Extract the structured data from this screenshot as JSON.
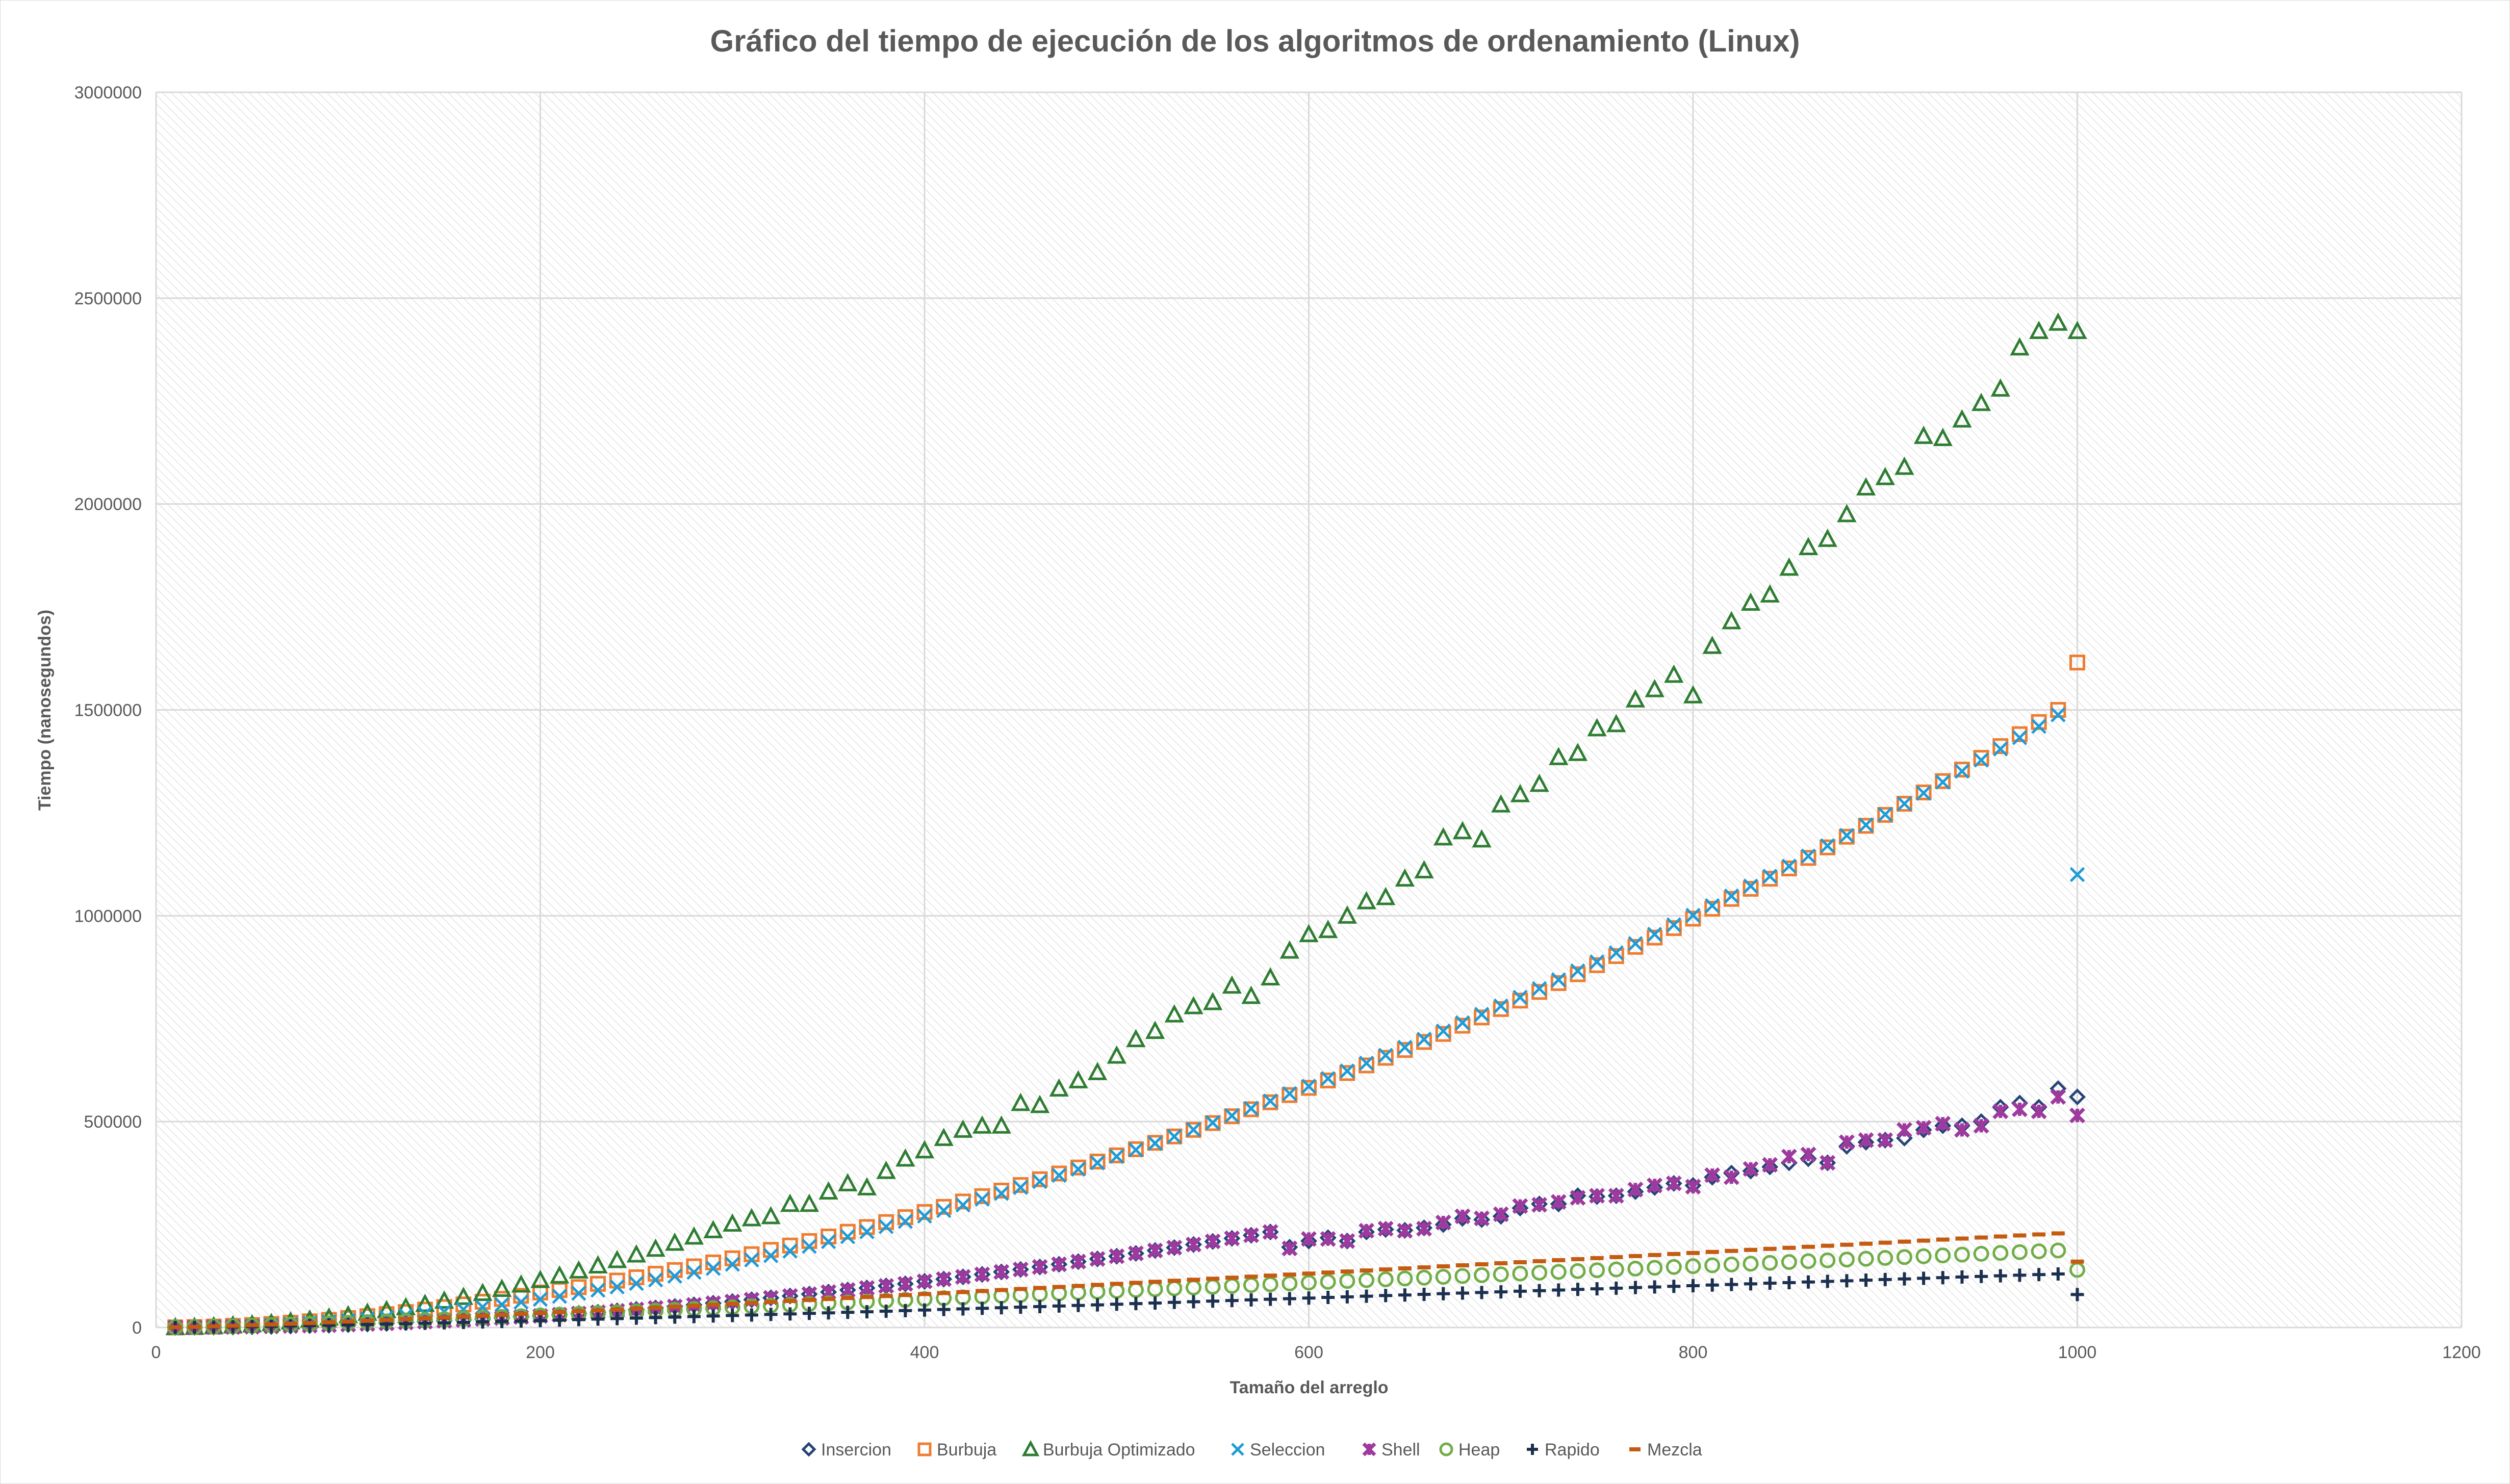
{
  "chart_data": {
    "type": "scatter",
    "title": "Gráfico del tiempo de ejecución de los algoritmos de ordenamiento (Linux)",
    "xlabel": "Tamaño del arreglo",
    "ylabel": "Tiempo (nanosegundos)",
    "xlim": [
      0,
      1200
    ],
    "ylim": [
      0,
      3000000
    ],
    "x_ticks": [
      "0",
      "200",
      "400",
      "600",
      "800",
      "1000",
      "1200"
    ],
    "y_ticks": [
      "0",
      "500000",
      "1000000",
      "1500000",
      "2000000",
      "2500000",
      "3000000"
    ],
    "grid": true,
    "legend_position": "bottom",
    "x": [
      10,
      20,
      30,
      40,
      50,
      60,
      70,
      80,
      90,
      100,
      110,
      120,
      130,
      140,
      150,
      160,
      170,
      180,
      190,
      200,
      210,
      220,
      230,
      240,
      250,
      260,
      270,
      280,
      290,
      300,
      310,
      320,
      330,
      340,
      350,
      360,
      370,
      380,
      390,
      400,
      410,
      420,
      430,
      440,
      450,
      460,
      470,
      480,
      490,
      500,
      510,
      520,
      530,
      540,
      550,
      560,
      570,
      580,
      590,
      600,
      610,
      620,
      630,
      640,
      650,
      660,
      670,
      680,
      690,
      700,
      710,
      720,
      730,
      740,
      750,
      760,
      770,
      780,
      790,
      800,
      810,
      820,
      830,
      840,
      850,
      860,
      870,
      880,
      890,
      900,
      910,
      920,
      930,
      940,
      950,
      960,
      970,
      980,
      990,
      1000
    ],
    "series": [
      {
        "name": "Insercion",
        "color": "#264478",
        "marker": "diamond",
        "values": [
          100,
          300,
          800,
          1200,
          1800,
          2500,
          3500,
          4500,
          5500,
          7000,
          8500,
          10000,
          12000,
          14000,
          16000,
          18000,
          20500,
          23000,
          25500,
          28000,
          31000,
          34000,
          37000,
          40500,
          44000,
          47500,
          51000,
          55000,
          59000,
          63000,
          67500,
          72000,
          76500,
          81000,
          86000,
          91000,
          96000,
          101000,
          106000,
          112000,
          117500,
          123000,
          129000,
          135000,
          141000,
          147000,
          153500,
          160000,
          166500,
          173000,
          180000,
          187000,
          194000,
          201500,
          209000,
          216500,
          224000,
          232000,
          195000,
          210000,
          218000,
          210000,
          232000,
          238000,
          236000,
          242000,
          250000,
          265000,
          262000,
          270000,
          290000,
          300000,
          300000,
          320000,
          318000,
          320000,
          330000,
          340000,
          350000,
          345000,
          365000,
          375000,
          380000,
          390000,
          400000,
          410000,
          400000,
          440000,
          450000,
          455000,
          460000,
          480000,
          490000,
          490000,
          500000,
          535000,
          545000,
          535000,
          580000,
          560000
        ]
      },
      {
        "name": "Burbuja",
        "color": "#ED7D31",
        "marker": "square",
        "values": [
          300,
          1000,
          2300,
          4000,
          6000,
          8500,
          11500,
          15000,
          18500,
          23000,
          27500,
          32500,
          37500,
          43500,
          49500,
          56000,
          62500,
          69500,
          77000,
          85000,
          91000,
          98000,
          106000,
          114000,
          122000,
          130500,
          139500,
          148500,
          158000,
          168000,
          178000,
          188500,
          199000,
          210000,
          221000,
          232500,
          244000,
          256000,
          268000,
          280500,
          293000,
          306000,
          319000,
          332500,
          346000,
          360000,
          374000,
          388500,
          403000,
          418000,
          433000,
          448500,
          464000,
          480000,
          496500,
          513000,
          530000,
          547000,
          564500,
          582000,
          600000,
          618000,
          636500,
          655000,
          674000,
          693500,
          713000,
          733000,
          753000,
          773500,
          794000,
          815000,
          836500,
          858000,
          880000,
          902000,
          924500,
          947000,
          970000,
          993000,
          1017000,
          1041000,
          1065500,
          1090000,
          1115000,
          1140500,
          1166000,
          1192000,
          1218500,
          1245000,
          1272000,
          1299500,
          1327000,
          1355000,
          1383500,
          1412000,
          1441000,
          1470500,
          1500000,
          1615000
        ]
      },
      {
        "name": "Burbuja Optimizado",
        "color": "#2E7D32",
        "marker": "triangle",
        "values": [
          400,
          1200,
          2800,
          5000,
          7500,
          10500,
          14500,
          19000,
          24000,
          29500,
          35500,
          42000,
          49000,
          57000,
          65000,
          74000,
          83500,
          93500,
          104000,
          115000,
          126000,
          138000,
          150500,
          163500,
          177000,
          191000,
          205500,
          220500,
          236000,
          252000,
          265000,
          270000,
          300000,
          300000,
          330000,
          350000,
          340000,
          380000,
          410000,
          430000,
          460000,
          480000,
          490000,
          490000,
          545000,
          540000,
          580000,
          600000,
          620000,
          660000,
          700000,
          720000,
          760000,
          780000,
          790000,
          830000,
          805000,
          850000,
          915000,
          955000,
          965000,
          1000000,
          1035000,
          1045000,
          1090000,
          1110000,
          1190000,
          1205000,
          1185000,
          1270000,
          1295000,
          1320000,
          1385000,
          1395000,
          1455000,
          1465000,
          1525000,
          1550000,
          1585000,
          1535000,
          1655000,
          1715000,
          1760000,
          1780000,
          1845000,
          1895000,
          1915000,
          1975000,
          2040000,
          2065000,
          2090000,
          2165000,
          2160000,
          2205000,
          2245000,
          2280000,
          2380000,
          2420000,
          2440000,
          2420000
        ]
      },
      {
        "name": "Seleccion",
        "color": "#1F9BD6",
        "marker": "x",
        "values": [
          200,
          700,
          1500,
          2700,
          4200,
          6000,
          8200,
          10800,
          13700,
          17000,
          20500,
          24500,
          28800,
          33500,
          38500,
          43800,
          49500,
          55500,
          61800,
          68500,
          75500,
          83000,
          90500,
          98500,
          107000,
          115500,
          124500,
          134000,
          143500,
          153500,
          164000,
          174500,
          185500,
          197000,
          208500,
          220500,
          232500,
          245000,
          257500,
          270500,
          284000,
          297500,
          311500,
          325500,
          340000,
          354500,
          369500,
          384500,
          400000,
          415500,
          431500,
          447500,
          464000,
          480500,
          497500,
          514500,
          532000,
          550000,
          568000,
          586000,
          604500,
          623000,
          642000,
          661000,
          680500,
          700000,
          720000,
          740000,
          760500,
          781000,
          802000,
          823000,
          844500,
          866000,
          888000,
          910000,
          932500,
          955000,
          978000,
          1001000,
          1024500,
          1048000,
          1072000,
          1096000,
          1120500,
          1145000,
          1170000,
          1195000,
          1220500,
          1246000,
          1272000,
          1298000,
          1324500,
          1351000,
          1378000,
          1405000,
          1432500,
          1460000,
          1488000,
          1100000
        ]
      },
      {
        "name": "Shell",
        "color": "#9E3A9E",
        "marker": "star",
        "values": [
          100,
          300,
          800,
          1200,
          1800,
          2500,
          3500,
          4500,
          5500,
          7000,
          8500,
          10000,
          12000,
          14000,
          16000,
          18000,
          20500,
          23000,
          25500,
          28000,
          31000,
          34000,
          37000,
          40500,
          44000,
          47500,
          51000,
          55000,
          59000,
          63000,
          67500,
          72000,
          76500,
          81000,
          86000,
          91000,
          96000,
          101000,
          106000,
          112000,
          117500,
          123000,
          129000,
          135000,
          141000,
          147000,
          153500,
          160000,
          166500,
          173000,
          180000,
          187000,
          194000,
          201500,
          209000,
          216500,
          224000,
          232000,
          192000,
          215000,
          215000,
          210000,
          235000,
          240000,
          235000,
          240000,
          255000,
          270000,
          265000,
          275000,
          295000,
          298000,
          305000,
          315000,
          320000,
          320000,
          335000,
          345000,
          350000,
          342000,
          370000,
          365000,
          385000,
          395000,
          415000,
          420000,
          400000,
          450000,
          455000,
          455000,
          480000,
          485000,
          495000,
          480000,
          490000,
          525000,
          530000,
          525000,
          560000,
          515000
        ]
      },
      {
        "name": "Heap",
        "color": "#70AD47",
        "marker": "circle",
        "values": [
          300,
          1000,
          2000,
          3000,
          4200,
          5500,
          7000,
          8500,
          10000,
          11500,
          13000,
          14800,
          16500,
          18200,
          20000,
          21800,
          23600,
          25500,
          27400,
          29300,
          31200,
          33100,
          35000,
          37000,
          39000,
          41000,
          43000,
          45000,
          47000,
          49000,
          51000,
          53000,
          55000,
          57000,
          59000,
          61000,
          63000,
          65000,
          67000,
          69000,
          71000,
          73000,
          75000,
          77000,
          79000,
          81000,
          83000,
          85000,
          87000,
          89000,
          91000,
          93000,
          95000,
          97000,
          99000,
          101000,
          103000,
          105000,
          107000,
          109000,
          111000,
          113000,
          115000,
          117000,
          119000,
          121000,
          123000,
          125000,
          127000,
          129000,
          131000,
          133000,
          135000,
          137000,
          139000,
          141000,
          143000,
          145000,
          147000,
          149000,
          151000,
          153000,
          155000,
          157000,
          159000,
          161000,
          163000,
          165000,
          167000,
          169000,
          171000,
          173000,
          175000,
          177000,
          179000,
          181000,
          183000,
          185000,
          187000,
          140000
        ]
      },
      {
        "name": "Rapido",
        "color": "#1B2F4E",
        "marker": "plus",
        "values": [
          200,
          500,
          1000,
          1600,
          2300,
          3000,
          3800,
          4600,
          5500,
          6400,
          7300,
          8300,
          9300,
          10300,
          11300,
          12400,
          13500,
          14600,
          15700,
          16800,
          18000,
          19200,
          20400,
          21600,
          22800,
          24000,
          25200,
          26500,
          27800,
          29100,
          30400,
          31700,
          33000,
          34300,
          35600,
          36900,
          38200,
          39600,
          41000,
          42400,
          43800,
          45200,
          46600,
          48000,
          49400,
          50800,
          52200,
          53600,
          55000,
          56500,
          58000,
          59500,
          61000,
          62500,
          64000,
          65500,
          67000,
          68500,
          70000,
          71500,
          73000,
          74500,
          76000,
          77500,
          79000,
          80500,
          82000,
          83500,
          85000,
          86500,
          88000,
          89500,
          91000,
          92500,
          94000,
          95500,
          97000,
          98500,
          100000,
          101500,
          103000,
          104500,
          106000,
          107500,
          109000,
          110500,
          112000,
          113500,
          115000,
          116500,
          118000,
          119500,
          121000,
          122500,
          124000,
          125500,
          127000,
          128500,
          130000,
          80000
        ]
      },
      {
        "name": "Mezcla",
        "color": "#C55A11",
        "marker": "dash",
        "values": [
          500,
          1500,
          2800,
          4200,
          5700,
          7300,
          9000,
          10800,
          12600,
          14500,
          16400,
          18300,
          20300,
          22300,
          24300,
          26400,
          28500,
          30600,
          32700,
          34900,
          37100,
          39300,
          41500,
          43700,
          45900,
          48200,
          50500,
          52800,
          55100,
          57400,
          59700,
          62000,
          64400,
          66800,
          69200,
          71600,
          74000,
          76400,
          78800,
          81200,
          83600,
          86000,
          88500,
          91000,
          93500,
          96000,
          98500,
          101000,
          103500,
          106000,
          108500,
          111000,
          113500,
          116000,
          118500,
          121000,
          123500,
          126000,
          128500,
          131000,
          133500,
          136000,
          138500,
          141000,
          143500,
          146000,
          148500,
          151000,
          153500,
          156000,
          158500,
          161000,
          163500,
          166000,
          168500,
          171000,
          173500,
          176000,
          178500,
          181000,
          183500,
          186000,
          188500,
          191000,
          193500,
          196000,
          198500,
          201000,
          203500,
          206000,
          208500,
          211000,
          213500,
          216000,
          218500,
          221000,
          223500,
          226000,
          228500,
          160000
        ]
      }
    ]
  }
}
